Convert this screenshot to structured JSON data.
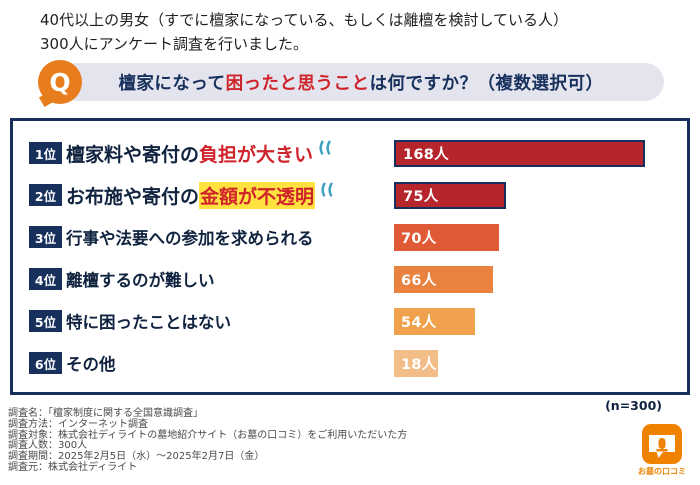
{
  "intro": {
    "line1": "40代以上の男女（すでに檀家になっている、もしくは離檀を検討している人）",
    "line2": "300人にアンケート調査を行いました。"
  },
  "question": {
    "icon_label": "Q",
    "prefix": "檀家になって",
    "highlight": "困ったと思うこと",
    "suffix": "は何ですか？（複数選択可）"
  },
  "chart_data": {
    "type": "bar",
    "orientation": "horizontal",
    "title": "檀家になって困ったと思うことは何ですか？（複数選択可）",
    "n_label": "(n=300)",
    "max_value": 168,
    "categories": [
      "檀家料や寄付の負担が大きい",
      "お布施や寄付の金額が不透明",
      "行事や法要への参加を求められる",
      "離檀するのが難しい",
      "特に困ったことはない",
      "その他"
    ],
    "values": [
      168,
      75,
      70,
      66,
      54,
      18
    ],
    "items": [
      {
        "rank": "1位",
        "label_plain": "檀家料や寄付の",
        "label_emph": "負担が大きい",
        "value": 168,
        "value_label": "168人",
        "bar_color": "#b6242c",
        "bordered": true,
        "sweat": true,
        "highlight_bg": false
      },
      {
        "rank": "2位",
        "label_plain": "お布施や寄付の",
        "label_emph": "金額が不透明",
        "value": 75,
        "value_label": "75人",
        "bar_color": "#b6242c",
        "bordered": true,
        "sweat": true,
        "highlight_bg": true
      },
      {
        "rank": "3位",
        "label_plain": "行事や法要への参加を求められる",
        "label_emph": "",
        "value": 70,
        "value_label": "70人",
        "bar_color": "#e05a36",
        "bordered": false,
        "sweat": false,
        "highlight_bg": false
      },
      {
        "rank": "4位",
        "label_plain": "離檀するのが難しい",
        "label_emph": "",
        "value": 66,
        "value_label": "66人",
        "bar_color": "#e9813f",
        "bordered": false,
        "sweat": false,
        "highlight_bg": false
      },
      {
        "rank": "5位",
        "label_plain": "特に困ったことはない",
        "label_emph": "",
        "value": 54,
        "value_label": "54人",
        "bar_color": "#efa24b",
        "bordered": false,
        "sweat": false,
        "highlight_bg": false
      },
      {
        "rank": "6位",
        "label_plain": "その他",
        "label_emph": "",
        "value": 18,
        "value_label": "18人",
        "bar_color": "#f3bd87",
        "bordered": false,
        "sweat": false,
        "highlight_bg": false
      }
    ]
  },
  "footer": {
    "lines": [
      "調査名：「檀家制度に関する全国意識調査」",
      "調査方法：インターネット調査",
      "調査対象：株式会社ディライトの墓地紹介サイト（お墓の口コミ）をご利用いただいた方",
      "調査人数：300人",
      "調査期間：2025年2月5日（水）～2025年2月7日（金）",
      "調査元：株式会社ディライト"
    ]
  },
  "logo": {
    "text": "お墓の口コミ"
  },
  "colors": {
    "navy": "#17305c",
    "emphasis_red": "#cf242b",
    "bar_dark_red": "#b6242c",
    "bar_orange_red": "#e05a36",
    "bar_orange": "#e9813f",
    "bar_light_orange": "#efa24b",
    "bar_pale_orange": "#f3bd87",
    "yellow_highlight": "#ffe23f",
    "banner_bg": "#e4e4ee",
    "q_orange": "#e87d1e",
    "logo_orange": "#ef8200",
    "sweat_teal": "#3fa0bf"
  }
}
